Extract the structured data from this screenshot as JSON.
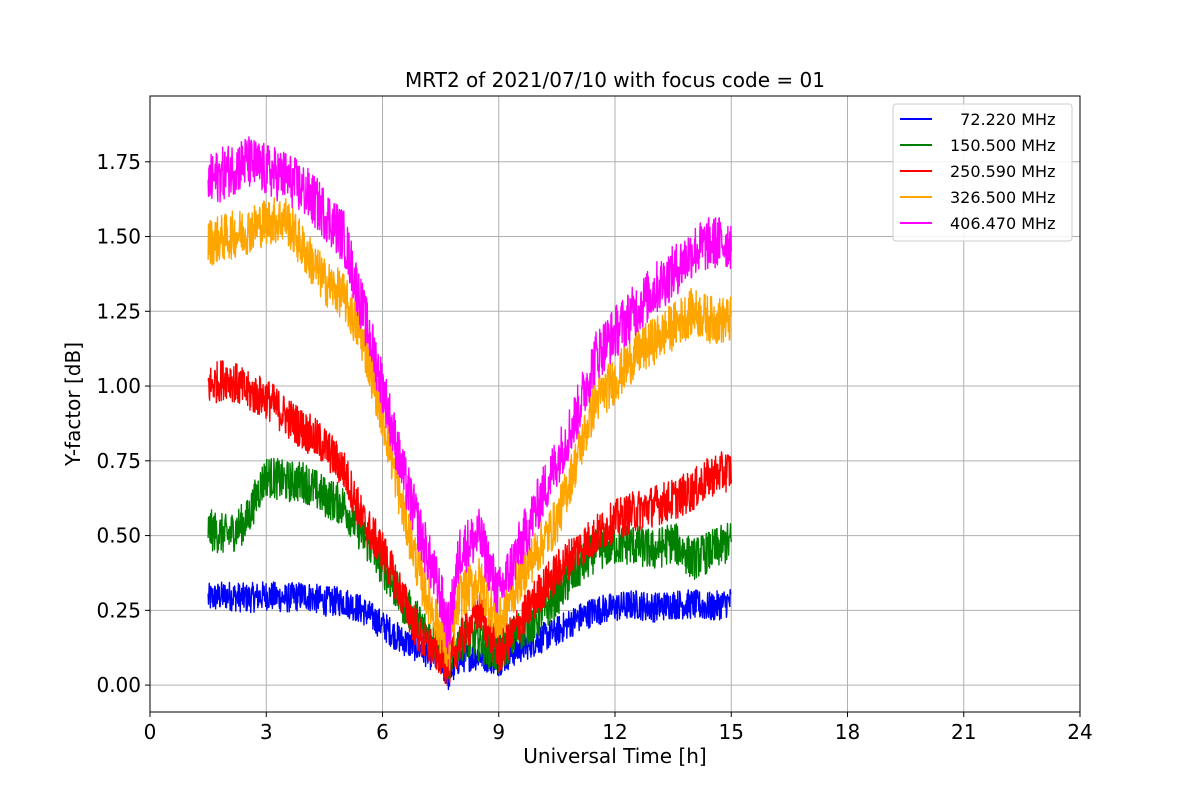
{
  "chart_data": {
    "type": "line",
    "title": "MRT2 of 2021/07/10 with focus code = 01",
    "xlabel": "Universal Time [h]",
    "ylabel": "Y-factor [dB]",
    "xlim": [
      0,
      24
    ],
    "ylim": [
      -0.09,
      1.97
    ],
    "xticks": [
      0,
      3,
      6,
      9,
      12,
      15,
      18,
      21,
      24
    ],
    "xtick_labels": [
      "0",
      "3",
      "6",
      "9",
      "12",
      "15",
      "18",
      "21",
      "24"
    ],
    "yticks": [
      0.0,
      0.25,
      0.5,
      0.75,
      1.0,
      1.25,
      1.5,
      1.75
    ],
    "ytick_labels": [
      "0.00",
      "0.25",
      "0.50",
      "0.75",
      "1.00",
      "1.25",
      "1.50",
      "1.75"
    ],
    "grid": true,
    "legend_position": "top-right",
    "series": [
      {
        "name": "  72.220 MHz",
        "color": "#0000ff",
        "x": [
          1.5,
          2.0,
          2.5,
          3.0,
          3.5,
          4.0,
          4.5,
          5.0,
          5.5,
          6.0,
          6.5,
          7.0,
          7.5,
          7.7,
          8.0,
          8.5,
          9.0,
          9.5,
          10.0,
          10.5,
          11.0,
          11.5,
          12.0,
          12.5,
          13.0,
          13.5,
          14.0,
          14.5,
          15.0
        ],
        "y": [
          0.29,
          0.3,
          0.29,
          0.3,
          0.29,
          0.3,
          0.28,
          0.28,
          0.25,
          0.2,
          0.15,
          0.12,
          0.08,
          0.03,
          0.09,
          0.1,
          0.08,
          0.12,
          0.15,
          0.18,
          0.22,
          0.25,
          0.26,
          0.27,
          0.26,
          0.27,
          0.27,
          0.26,
          0.28
        ]
      },
      {
        "name": "150.500 MHz",
        "color": "#008000",
        "x": [
          1.5,
          2.0,
          2.5,
          2.8,
          3.0,
          3.5,
          4.0,
          4.5,
          5.0,
          5.5,
          6.0,
          6.5,
          7.0,
          7.5,
          7.7,
          8.0,
          8.5,
          9.0,
          9.5,
          10.0,
          10.5,
          11.0,
          11.5,
          12.0,
          12.5,
          13.0,
          13.5,
          14.0,
          14.5,
          15.0
        ],
        "y": [
          0.52,
          0.5,
          0.55,
          0.65,
          0.7,
          0.68,
          0.68,
          0.63,
          0.6,
          0.5,
          0.4,
          0.28,
          0.2,
          0.12,
          0.08,
          0.15,
          0.15,
          0.1,
          0.18,
          0.22,
          0.3,
          0.38,
          0.45,
          0.47,
          0.47,
          0.45,
          0.48,
          0.42,
          0.45,
          0.48
        ]
      },
      {
        "name": "250.590 MHz",
        "color": "#ff0000",
        "x": [
          1.5,
          2.0,
          2.5,
          3.0,
          3.5,
          4.0,
          4.5,
          5.0,
          5.5,
          6.0,
          6.5,
          7.0,
          7.5,
          7.7,
          8.0,
          8.5,
          9.0,
          9.5,
          10.0,
          10.5,
          11.0,
          11.5,
          12.0,
          12.5,
          13.0,
          13.5,
          14.0,
          14.5,
          15.0
        ],
        "y": [
          1.0,
          1.03,
          0.98,
          0.96,
          0.9,
          0.85,
          0.8,
          0.72,
          0.55,
          0.45,
          0.3,
          0.15,
          0.1,
          0.06,
          0.15,
          0.25,
          0.1,
          0.2,
          0.3,
          0.38,
          0.45,
          0.5,
          0.55,
          0.58,
          0.6,
          0.62,
          0.65,
          0.7,
          0.72
        ]
      },
      {
        "name": "326.500 MHz",
        "color": "#ffa500",
        "x": [
          1.5,
          2.0,
          2.5,
          3.0,
          3.5,
          4.0,
          4.5,
          5.0,
          5.5,
          6.0,
          6.5,
          7.0,
          7.5,
          7.7,
          8.0,
          8.5,
          9.0,
          9.5,
          10.0,
          10.5,
          11.0,
          11.5,
          12.0,
          12.5,
          13.0,
          13.5,
          14.0,
          14.5,
          15.0
        ],
        "y": [
          1.48,
          1.5,
          1.52,
          1.55,
          1.56,
          1.45,
          1.35,
          1.3,
          1.15,
          0.9,
          0.6,
          0.35,
          0.18,
          0.1,
          0.3,
          0.35,
          0.2,
          0.35,
          0.45,
          0.55,
          0.75,
          0.95,
          1.02,
          1.1,
          1.15,
          1.2,
          1.25,
          1.22,
          1.22
        ]
      },
      {
        "name": "406.470 MHz",
        "color": "#ff00ff",
        "x": [
          1.5,
          2.0,
          2.5,
          3.0,
          3.5,
          4.0,
          4.5,
          5.0,
          5.5,
          6.0,
          6.5,
          7.0,
          7.5,
          7.7,
          8.0,
          8.5,
          9.0,
          9.5,
          10.0,
          10.5,
          11.0,
          11.5,
          12.0,
          12.5,
          13.0,
          13.5,
          14.0,
          14.5,
          15.0
        ],
        "y": [
          1.68,
          1.72,
          1.75,
          1.72,
          1.7,
          1.65,
          1.58,
          1.5,
          1.25,
          1.0,
          0.72,
          0.5,
          0.3,
          0.18,
          0.45,
          0.5,
          0.3,
          0.45,
          0.6,
          0.75,
          0.9,
          1.1,
          1.18,
          1.25,
          1.32,
          1.38,
          1.45,
          1.48,
          1.48
        ]
      }
    ]
  }
}
